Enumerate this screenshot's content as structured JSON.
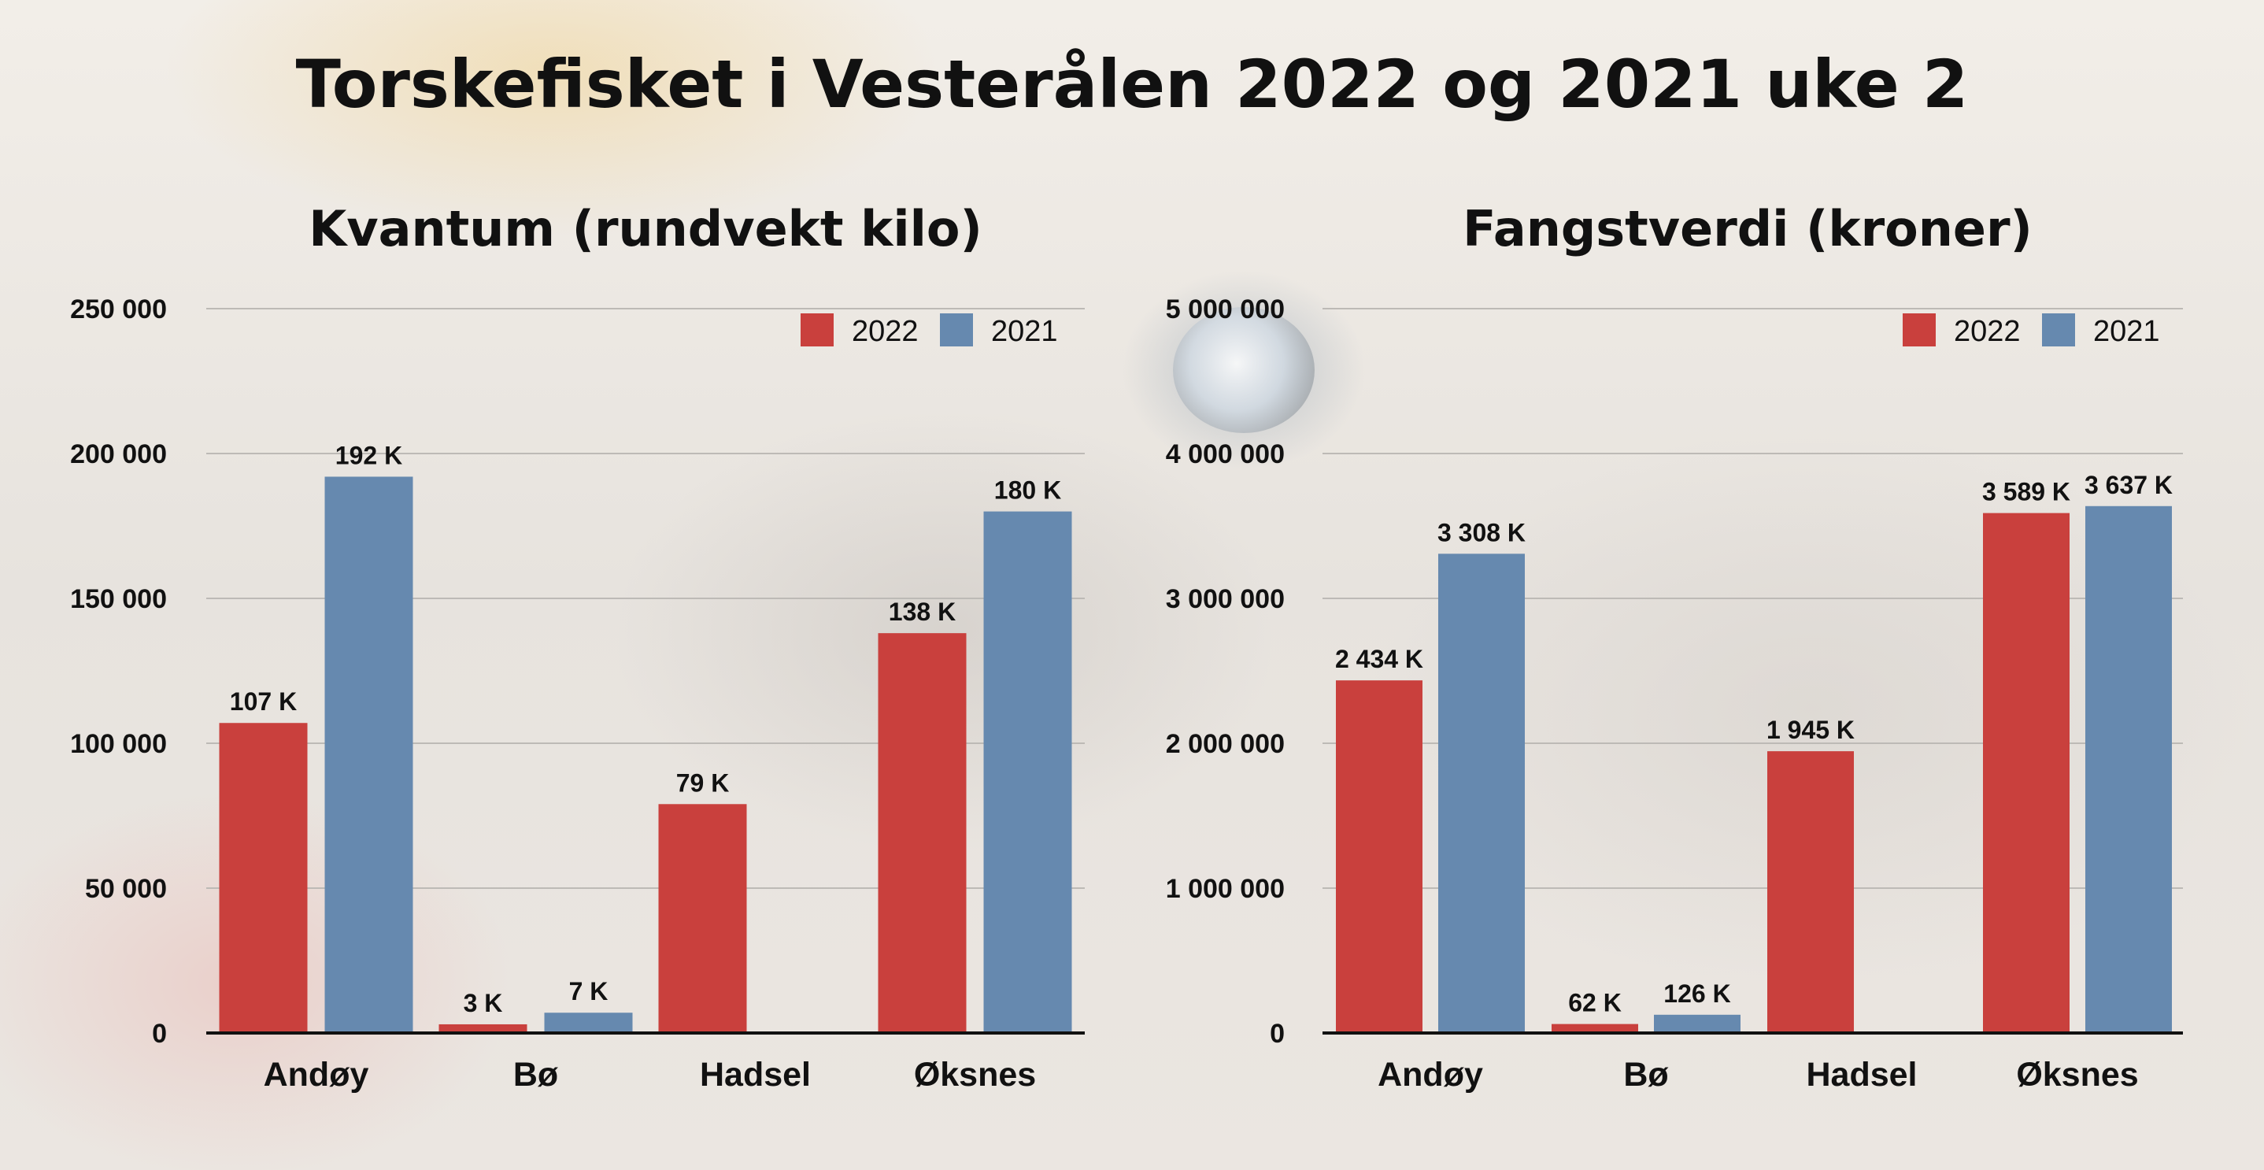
{
  "title": "Torskefisket i Vesterålen 2022 og 2021 uke 2",
  "colors": {
    "2022": "#c9403d",
    "2021": "#6689af",
    "grid": "#bdbab6",
    "axis": "#111111"
  },
  "chart_data": [
    {
      "type": "bar",
      "title": "Kvantum (rundvekt kilo)",
      "categories": [
        "Andøy",
        "Bø",
        "Hadsel",
        "Øksnes"
      ],
      "series": [
        {
          "name": "2022",
          "values": [
            107000,
            3000,
            79000,
            138000
          ],
          "labels": [
            "107 K",
            "3 K",
            "79 K",
            "138 K"
          ]
        },
        {
          "name": "2021",
          "values": [
            192000,
            7000,
            null,
            180000
          ],
          "labels": [
            "192 K",
            "7 K",
            "",
            "180 K"
          ]
        }
      ],
      "ylim": [
        0,
        250000
      ],
      "yticks": [
        0,
        50000,
        100000,
        150000,
        200000,
        250000
      ],
      "ytick_labels": [
        "0",
        "50 000",
        "100 000",
        "150 000",
        "200 000",
        "250 000"
      ],
      "grid": true,
      "legend": "top-right"
    },
    {
      "type": "bar",
      "title": "Fangstverdi (kroner)",
      "categories": [
        "Andøy",
        "Bø",
        "Hadsel",
        "Øksnes"
      ],
      "series": [
        {
          "name": "2022",
          "values": [
            2434000,
            62000,
            1945000,
            3589000
          ],
          "labels": [
            "2 434 K",
            "62 K",
            "1 945 K",
            "3 589 K"
          ]
        },
        {
          "name": "2021",
          "values": [
            3308000,
            126000,
            null,
            3637000
          ],
          "labels": [
            "3 308 K",
            "126 K",
            "",
            "3 637 K"
          ]
        }
      ],
      "ylim": [
        0,
        5000000
      ],
      "yticks": [
        0,
        1000000,
        2000000,
        3000000,
        4000000,
        5000000
      ],
      "ytick_labels": [
        "0",
        "1 000 000",
        "2 000 000",
        "3 000 000",
        "4 000 000",
        "5 000 000"
      ],
      "grid": true,
      "legend": "top-right"
    }
  ]
}
